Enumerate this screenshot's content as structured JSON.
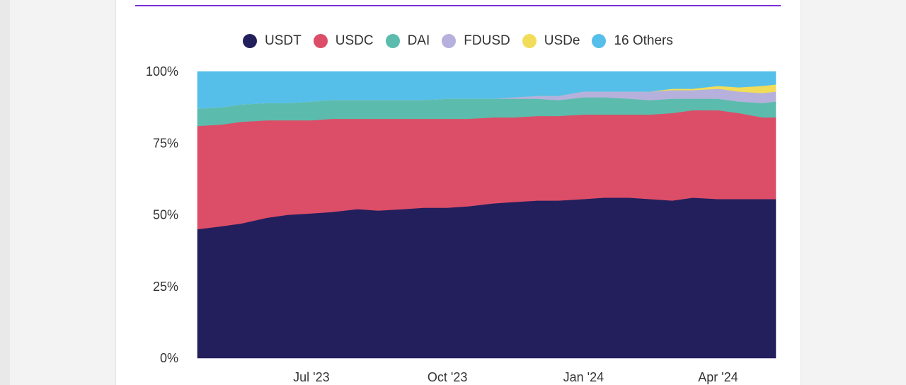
{
  "colors": {
    "page_background": "#f3f3f3",
    "panel_background": "#ffffff",
    "accent_line": "#7b2fd6",
    "text": "#333333"
  },
  "chart_data": {
    "type": "area",
    "stacked": true,
    "normalized_percent": true,
    "title": "",
    "xlabel": "",
    "ylabel": "",
    "ylim": [
      0,
      100
    ],
    "y_ticks": [
      {
        "value": 0,
        "label": "0%"
      },
      {
        "value": 25,
        "label": "25%"
      },
      {
        "value": 50,
        "label": "50%"
      },
      {
        "value": 75,
        "label": "75%"
      },
      {
        "value": 100,
        "label": "100%"
      }
    ],
    "x_ticks": [
      {
        "value": "2023-07-01",
        "label": "Jul '23"
      },
      {
        "value": "2023-10-01",
        "label": "Oct '23"
      },
      {
        "value": "2024-01-01",
        "label": "Jan '24"
      },
      {
        "value": "2024-04-01",
        "label": "Apr '24"
      }
    ],
    "xlim": [
      "2023-04-15",
      "2024-05-10"
    ],
    "legend_position": "top",
    "grid": false,
    "x": [
      "2023-04-15",
      "2023-05-01",
      "2023-05-15",
      "2023-06-01",
      "2023-06-15",
      "2023-07-01",
      "2023-07-15",
      "2023-08-01",
      "2023-08-15",
      "2023-09-01",
      "2023-09-15",
      "2023-10-01",
      "2023-10-15",
      "2023-11-01",
      "2023-11-15",
      "2023-12-01",
      "2023-12-15",
      "2024-01-01",
      "2024-01-15",
      "2024-02-01",
      "2024-02-15",
      "2024-03-01",
      "2024-03-15",
      "2024-04-01",
      "2024-04-15",
      "2024-05-01",
      "2024-05-10"
    ],
    "series": [
      {
        "name": "USDT",
        "color": "#231f5c",
        "values": [
          45,
          46,
          47,
          49,
          50,
          50.5,
          51,
          52,
          51.5,
          52,
          52.5,
          52.5,
          53,
          54,
          54.5,
          55,
          55,
          55.5,
          56,
          56,
          55.5,
          55,
          56,
          55.5,
          55.5,
          55.5,
          55.5
        ]
      },
      {
        "name": "USDC",
        "color": "#dc4e67",
        "values": [
          36,
          35.5,
          35.5,
          34,
          33,
          32.5,
          32.5,
          31.5,
          32,
          31.5,
          31,
          31,
          30.5,
          30,
          29.5,
          29.5,
          29.5,
          29.5,
          29,
          29,
          29.5,
          30.5,
          30.5,
          31,
          30,
          28.5,
          28.5
        ]
      },
      {
        "name": "DAI",
        "color": "#5bbcad",
        "values": [
          6,
          6,
          6,
          6,
          6,
          6.5,
          6.5,
          6.5,
          6.5,
          6.5,
          6.5,
          7,
          7,
          6.5,
          6.5,
          6,
          5.5,
          6,
          6,
          5.5,
          5,
          5,
          4,
          4,
          4,
          5,
          5.5
        ]
      },
      {
        "name": "FDUSD",
        "color": "#b6b1dc",
        "values": [
          0,
          0,
          0,
          0,
          0,
          0,
          0,
          0,
          0,
          0,
          0,
          0,
          0,
          0,
          0.5,
          1,
          1.5,
          2,
          2,
          2.5,
          3,
          3,
          3,
          3.5,
          3.5,
          3.5,
          3.5
        ]
      },
      {
        "name": "USDe",
        "color": "#f1dd59",
        "values": [
          0,
          0,
          0,
          0,
          0,
          0,
          0,
          0,
          0,
          0,
          0,
          0,
          0,
          0,
          0,
          0,
          0,
          0,
          0,
          0,
          0,
          0.5,
          0.5,
          1,
          1.5,
          2.5,
          2.5
        ]
      },
      {
        "name": "16 Others",
        "color": "#55bfea",
        "values": [
          13,
          12.5,
          11.5,
          11,
          11,
          10.5,
          10,
          10,
          10,
          10,
          10,
          9.5,
          9.5,
          9.5,
          9,
          8.5,
          8.5,
          7,
          7,
          7,
          7,
          6,
          6,
          5,
          5.5,
          5,
          4.5
        ]
      }
    ]
  }
}
